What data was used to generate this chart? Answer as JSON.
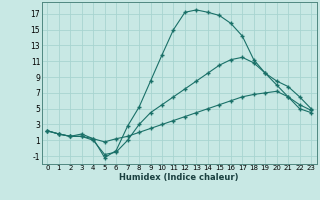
{
  "xlabel": "Humidex (Indice chaleur)",
  "background_color": "#c8e8e4",
  "grid_color": "#a8d4d0",
  "line_color": "#1a7068",
  "xlim": [
    -0.5,
    23.5
  ],
  "ylim": [
    -2.0,
    18.5
  ],
  "xticks": [
    0,
    1,
    2,
    3,
    4,
    5,
    6,
    7,
    8,
    9,
    10,
    11,
    12,
    13,
    14,
    15,
    16,
    17,
    18,
    19,
    20,
    21,
    22,
    23
  ],
  "yticks": [
    -1,
    1,
    3,
    5,
    7,
    9,
    11,
    13,
    15,
    17
  ],
  "curve1_x": [
    0,
    1,
    2,
    3,
    4,
    5,
    6,
    7,
    8,
    9,
    10,
    11,
    12,
    13,
    14,
    15,
    16,
    17,
    18,
    19,
    20,
    21,
    22,
    23
  ],
  "curve1_y": [
    2.2,
    1.8,
    1.5,
    1.8,
    1.2,
    -1.2,
    -0.3,
    2.8,
    5.2,
    8.5,
    11.8,
    15.0,
    17.2,
    17.5,
    17.2,
    16.8,
    15.8,
    14.2,
    11.2,
    9.5,
    8.5,
    7.8,
    6.5,
    5.0
  ],
  "curve2_x": [
    0,
    1,
    2,
    3,
    4,
    5,
    6,
    7,
    8,
    9,
    10,
    11,
    12,
    13,
    14,
    15,
    16,
    17,
    18,
    19,
    20,
    21,
    22,
    23
  ],
  "curve2_y": [
    2.2,
    1.8,
    1.5,
    1.5,
    1.0,
    -0.8,
    -0.5,
    1.0,
    3.0,
    4.5,
    5.5,
    6.5,
    7.5,
    8.5,
    9.5,
    10.5,
    11.2,
    11.5,
    10.8,
    9.5,
    8.0,
    6.5,
    5.0,
    4.5
  ],
  "curve3_x": [
    0,
    1,
    2,
    3,
    4,
    5,
    6,
    7,
    8,
    9,
    10,
    11,
    12,
    13,
    14,
    15,
    16,
    17,
    18,
    19,
    20,
    21,
    22,
    23
  ],
  "curve3_y": [
    2.2,
    1.8,
    1.5,
    1.5,
    1.2,
    0.8,
    1.2,
    1.5,
    2.0,
    2.5,
    3.0,
    3.5,
    4.0,
    4.5,
    5.0,
    5.5,
    6.0,
    6.5,
    6.8,
    7.0,
    7.2,
    6.5,
    5.5,
    4.8
  ]
}
